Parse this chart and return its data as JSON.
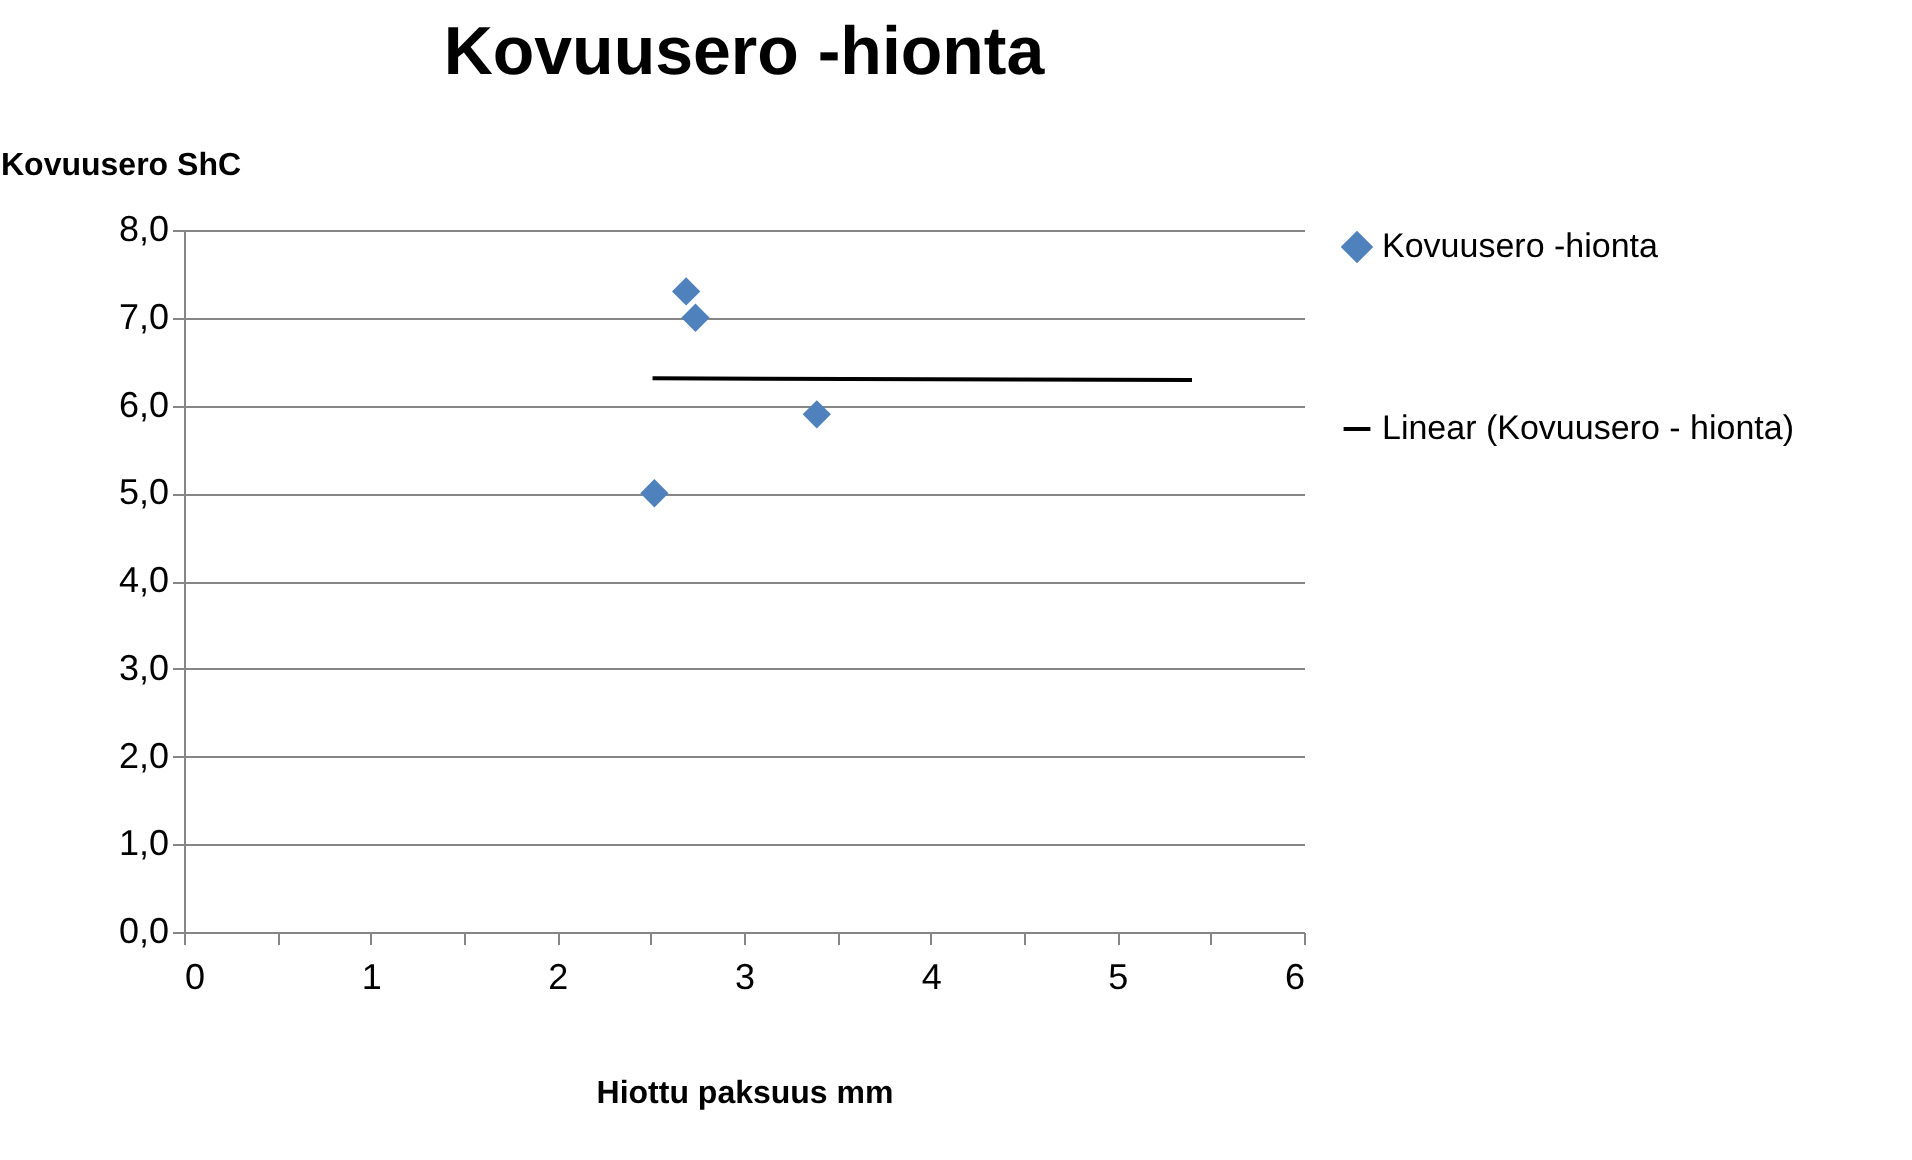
{
  "chart_data": {
    "type": "scatter",
    "title": "Kovuusero -hionta",
    "xlabel": "Hiottu paksuus mm",
    "ylabel": "Kovuusero ShC",
    "xlim": [
      0,
      6
    ],
    "ylim": [
      0,
      8
    ],
    "xticks": [
      0,
      {
        "value": 0.5,
        "label": null
      },
      1,
      {
        "value": 1.5,
        "label": null
      },
      2,
      {
        "value": 2.5,
        "label": null
      },
      3,
      {
        "value": 3.5,
        "label": null
      },
      4,
      {
        "value": 4.5,
        "label": null
      },
      5,
      {
        "value": 5.5,
        "label": null
      },
      6
    ],
    "yticks": [
      {
        "value": 0,
        "label": "0,0"
      },
      {
        "value": 1,
        "label": "1,0"
      },
      {
        "value": 2,
        "label": "2,0"
      },
      {
        "value": 3,
        "label": "3,0"
      },
      {
        "value": 4,
        "label": "4,0"
      },
      {
        "value": 5,
        "label": "5,0"
      },
      {
        "value": 6,
        "label": "6,0"
      },
      {
        "value": 7,
        "label": "7,0"
      },
      {
        "value": 8,
        "label": "8,0"
      }
    ],
    "grid": "y",
    "legend": "right",
    "series": [
      {
        "type": "scatter",
        "marker": "diamond",
        "name": "Kovuusero -hionta",
        "color": "#4f81bd",
        "x": [
          2.52,
          2.69,
          2.74,
          3.39
        ],
        "values": [
          5.0,
          7.3,
          7.0,
          5.9
        ]
      },
      {
        "type": "line",
        "marker": "none",
        "name": "Linear (Kovuusero - hionta)",
        "color": "#000000",
        "x": [
          2.51,
          5.4
        ],
        "values": [
          6.31,
          6.29
        ]
      }
    ]
  }
}
